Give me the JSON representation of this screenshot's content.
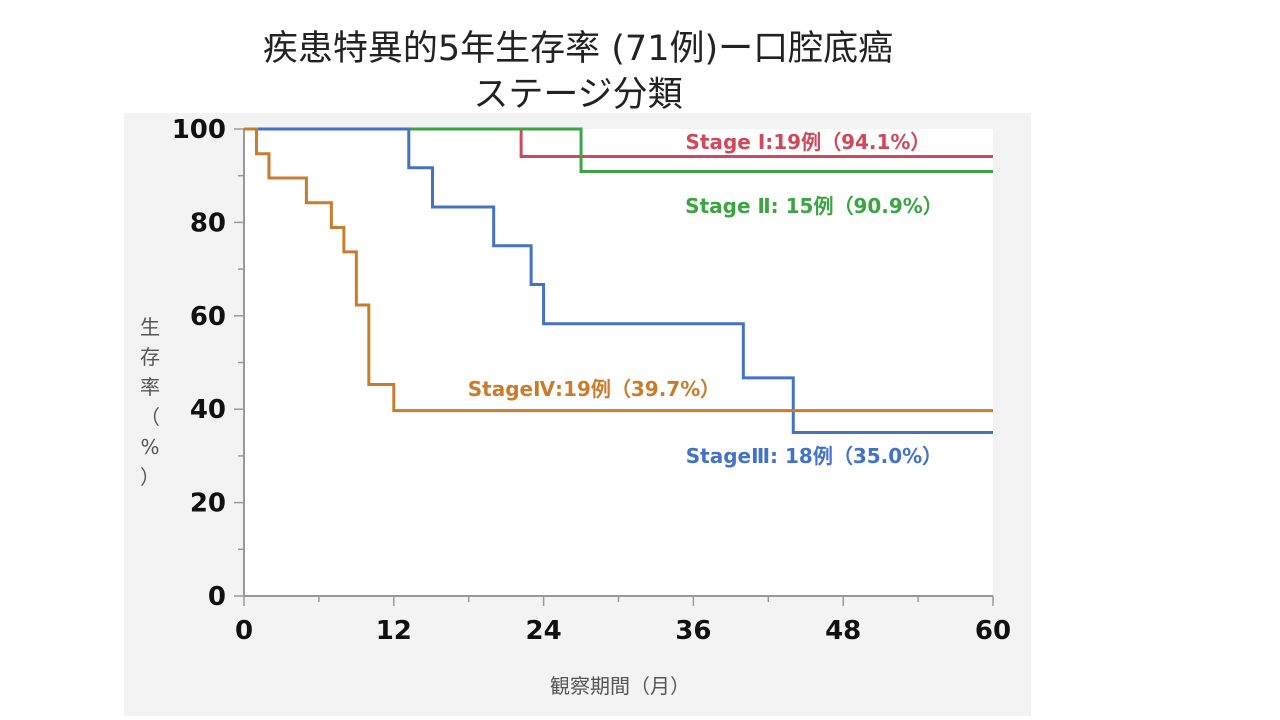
{
  "title_line1": "疾患特異的5年生存率 (71例)ー口腔底癌",
  "title_line2": "ステージ分類",
  "chart_data": {
    "type": "line",
    "step": true,
    "xlabel": "観察期間（月）",
    "ylabel": "生存率（%）",
    "xlim": [
      0,
      60
    ],
    "ylim": [
      0,
      100
    ],
    "xticks": [
      "0",
      "12",
      "24",
      "36",
      "48",
      "60"
    ],
    "yticks": [
      "0",
      "20",
      "40",
      "60",
      "80",
      "100"
    ],
    "grid": false,
    "series": [
      {
        "name": "Stage I",
        "label": "Stage Ⅰ:19例（94.1%）",
        "color": "#d0495a",
        "x": [
          0,
          22.2,
          60
        ],
        "y": [
          100,
          94.1,
          94.1
        ]
      },
      {
        "name": "Stage II",
        "label": "Stage Ⅱ: 15例（90.9%）",
        "color": "#3aa542",
        "x": [
          0,
          27,
          60
        ],
        "y": [
          100,
          90.9,
          90.9
        ]
      },
      {
        "name": "Stage III",
        "label": "StageⅢ: 18例（35.0%）",
        "color": "#4472c4",
        "x": [
          0,
          13.2,
          15.1,
          20,
          23,
          24,
          40,
          44,
          60
        ],
        "y": [
          100,
          91.7,
          83.3,
          75.0,
          66.7,
          58.3,
          46.7,
          35.0,
          35.0
        ]
      },
      {
        "name": "Stage IV",
        "label": "StageⅣ:19例（39.7%）",
        "color": "#c97c2c",
        "x": [
          0,
          1,
          2,
          5,
          7,
          8,
          9,
          10,
          12,
          60
        ],
        "y": [
          100,
          94.7,
          89.5,
          84.2,
          78.9,
          73.7,
          62.3,
          45.3,
          39.7,
          39.7
        ]
      }
    ]
  }
}
